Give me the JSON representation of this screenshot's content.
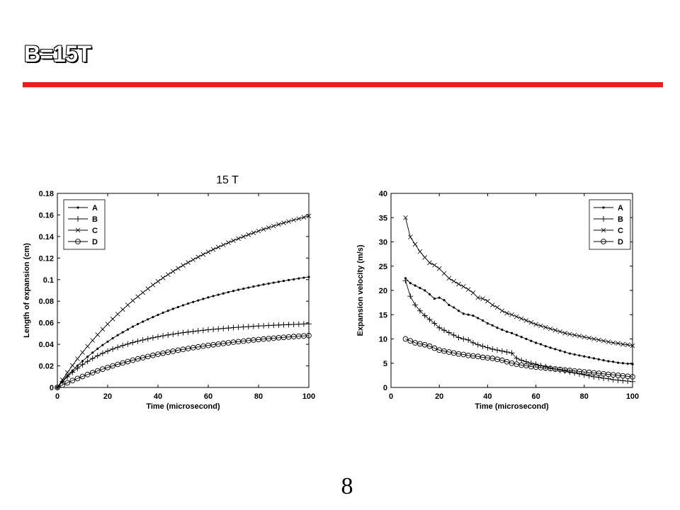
{
  "slide": {
    "title": "B=15T",
    "caption": "15 T",
    "page_number": "8",
    "accent_color": "#ee1c1c"
  },
  "chart_data": [
    {
      "type": "line",
      "title": "",
      "xlabel": "Time (microsecond)",
      "ylabel": "Length of expansion (cm)",
      "xlim": [
        0,
        100
      ],
      "ylim": [
        0,
        0.18
      ],
      "xticks": [
        "0",
        "20",
        "40",
        "60",
        "80",
        "100"
      ],
      "yticks": [
        "0",
        "0.02",
        "0.04",
        "0.06",
        "0.08",
        "0.1",
        "0.12",
        "0.14",
        "0.16",
        "0.18"
      ],
      "legend_position": "top-left",
      "grid": false,
      "x": [
        0,
        2,
        4,
        6,
        8,
        10,
        12,
        14,
        16,
        18,
        20,
        22,
        24,
        26,
        28,
        30,
        32,
        34,
        36,
        38,
        40,
        42,
        44,
        46,
        48,
        50,
        52,
        54,
        56,
        58,
        60,
        62,
        64,
        66,
        68,
        70,
        72,
        74,
        76,
        78,
        80,
        82,
        84,
        86,
        88,
        90,
        92,
        94,
        96,
        98,
        100
      ],
      "series": [
        {
          "name": "A",
          "marker": "dot",
          "values": [
            0,
            0.0056,
            0.0108,
            0.0157,
            0.0202,
            0.0245,
            0.0285,
            0.0323,
            0.0359,
            0.0393,
            0.0425,
            0.0456,
            0.0485,
            0.0512,
            0.0538,
            0.0564,
            0.0588,
            0.061,
            0.0632,
            0.0653,
            0.0673,
            0.0693,
            0.0711,
            0.0729,
            0.0746,
            0.0762,
            0.0778,
            0.0793,
            0.0807,
            0.0821,
            0.0835,
            0.0848,
            0.086,
            0.0872,
            0.0884,
            0.0895,
            0.0906,
            0.0916,
            0.0926,
            0.0936,
            0.0945,
            0.0955,
            0.0963,
            0.0972,
            0.098,
            0.0988,
            0.0996,
            0.1003,
            0.1011,
            0.1018,
            0.1025
          ]
        },
        {
          "name": "B",
          "marker": "plus",
          "values": [
            0,
            0.0053,
            0.0099,
            0.0141,
            0.0178,
            0.0212,
            0.0242,
            0.0269,
            0.0294,
            0.0317,
            0.0337,
            0.0356,
            0.0373,
            0.0389,
            0.0403,
            0.0417,
            0.0429,
            0.044,
            0.0451,
            0.0461,
            0.047,
            0.0479,
            0.0487,
            0.0494,
            0.0501,
            0.0508,
            0.0514,
            0.0519,
            0.0525,
            0.053,
            0.0535,
            0.0539,
            0.0543,
            0.0547,
            0.0551,
            0.0555,
            0.0558,
            0.0561,
            0.0564,
            0.0567,
            0.057,
            0.0572,
            0.0575,
            0.0577,
            0.0579,
            0.0581,
            0.0583,
            0.0585,
            0.0587,
            0.0589,
            0.059
          ]
        },
        {
          "name": "C",
          "marker": "x",
          "values": [
            0,
            0.0071,
            0.0139,
            0.0204,
            0.0266,
            0.0325,
            0.0382,
            0.0437,
            0.0489,
            0.054,
            0.0588,
            0.0635,
            0.068,
            0.0723,
            0.0765,
            0.0805,
            0.0843,
            0.088,
            0.0916,
            0.0951,
            0.0984,
            0.1016,
            0.1047,
            0.1076,
            0.1105,
            0.1133,
            0.1159,
            0.1185,
            0.121,
            0.1234,
            0.1257,
            0.128,
            0.1301,
            0.1322,
            0.1343,
            0.1362,
            0.1381,
            0.1399,
            0.1417,
            0.1434,
            0.1451,
            0.1467,
            0.1482,
            0.1497,
            0.1512,
            0.1526,
            0.1539,
            0.1553,
            0.1565,
            0.1578,
            0.159
          ]
        },
        {
          "name": "D",
          "marker": "circle",
          "values": [
            0,
            0.0022,
            0.0043,
            0.0064,
            0.0083,
            0.0102,
            0.012,
            0.0137,
            0.0154,
            0.017,
            0.0185,
            0.02,
            0.0214,
            0.0227,
            0.024,
            0.0253,
            0.0265,
            0.0276,
            0.0287,
            0.0298,
            0.0308,
            0.0318,
            0.0327,
            0.0336,
            0.0345,
            0.0353,
            0.0361,
            0.0369,
            0.0376,
            0.0383,
            0.039,
            0.0396,
            0.0402,
            0.0408,
            0.0414,
            0.042,
            0.0425,
            0.043,
            0.0435,
            0.044,
            0.0444,
            0.0449,
            0.0453,
            0.0457,
            0.0461,
            0.0465,
            0.0468,
            0.0472,
            0.0475,
            0.0478,
            0.0481
          ]
        }
      ]
    },
    {
      "type": "line",
      "title": "",
      "xlabel": "Time (microsecond)",
      "ylabel": "Expansion velocity (m/s)",
      "xlim": [
        0,
        100
      ],
      "ylim": [
        0,
        40
      ],
      "xticks": [
        "0",
        "20",
        "40",
        "60",
        "80",
        "100"
      ],
      "yticks": [
        "0",
        "5",
        "10",
        "15",
        "20",
        "25",
        "30",
        "35",
        "40"
      ],
      "legend_position": "top-right",
      "grid": false,
      "x": [
        6,
        8,
        10,
        12,
        14,
        16,
        18,
        20,
        22,
        24,
        26,
        28,
        30,
        32,
        34,
        36,
        38,
        40,
        42,
        44,
        46,
        48,
        50,
        52,
        54,
        56,
        58,
        60,
        62,
        64,
        66,
        68,
        70,
        72,
        74,
        76,
        78,
        80,
        82,
        84,
        86,
        88,
        90,
        92,
        94,
        96,
        98,
        100
      ],
      "series": [
        {
          "name": "A",
          "marker": "dot",
          "values": [
            22.5,
            21.5,
            21.0,
            20.5,
            20.0,
            19.2,
            18.3,
            18.5,
            18.0,
            17.0,
            16.5,
            15.8,
            15.2,
            15.0,
            14.8,
            14.3,
            13.8,
            13.2,
            12.8,
            12.3,
            11.9,
            11.5,
            11.2,
            10.8,
            10.4,
            10.0,
            9.6,
            9.2,
            8.9,
            8.5,
            8.2,
            7.9,
            7.6,
            7.3,
            7.0,
            6.8,
            6.6,
            6.4,
            6.2,
            6.0,
            5.8,
            5.6,
            5.4,
            5.3,
            5.1,
            5.0,
            4.9,
            4.8
          ]
        },
        {
          "name": "B",
          "marker": "plus",
          "values": [
            22.0,
            18.8,
            17.0,
            15.8,
            14.8,
            14.0,
            13.2,
            12.3,
            11.8,
            11.3,
            10.8,
            10.3,
            10.0,
            9.8,
            9.2,
            8.8,
            8.5,
            8.2,
            7.9,
            7.7,
            7.5,
            7.3,
            7.1,
            6.0,
            5.6,
            5.3,
            5.0,
            4.8,
            4.5,
            4.3,
            4.0,
            3.8,
            3.6,
            3.4,
            3.2,
            3.0,
            2.8,
            2.6,
            2.4,
            2.2,
            2.1,
            1.9,
            1.8,
            1.6,
            1.5,
            1.4,
            1.3,
            1.2
          ]
        },
        {
          "name": "C",
          "marker": "x",
          "values": [
            35.0,
            31.0,
            29.5,
            28.0,
            26.8,
            25.7,
            25.2,
            24.5,
            23.5,
            22.5,
            21.9,
            21.3,
            20.8,
            20.2,
            19.5,
            18.5,
            18.3,
            17.8,
            17.0,
            16.5,
            15.8,
            15.3,
            15.0,
            14.6,
            14.2,
            13.8,
            13.4,
            13.0,
            12.7,
            12.4,
            12.1,
            11.8,
            11.5,
            11.2,
            11.0,
            10.8,
            10.6,
            10.4,
            10.2,
            10.0,
            9.8,
            9.6,
            9.4,
            9.2,
            9.1,
            8.9,
            8.8,
            8.6
          ]
        },
        {
          "name": "D",
          "marker": "circle",
          "values": [
            10.0,
            9.6,
            9.2,
            9.0,
            8.8,
            8.5,
            8.1,
            7.7,
            7.5,
            7.3,
            7.1,
            6.9,
            6.8,
            6.6,
            6.5,
            6.4,
            6.2,
            6.1,
            6.0,
            5.8,
            5.6,
            5.3,
            5.0,
            4.8,
            4.6,
            4.5,
            4.3,
            4.2,
            4.1,
            4.0,
            3.9,
            3.8,
            3.7,
            3.6,
            3.5,
            3.4,
            3.3,
            3.2,
            3.1,
            3.0,
            2.9,
            2.8,
            2.7,
            2.6,
            2.5,
            2.4,
            2.3,
            2.2
          ]
        }
      ]
    }
  ]
}
